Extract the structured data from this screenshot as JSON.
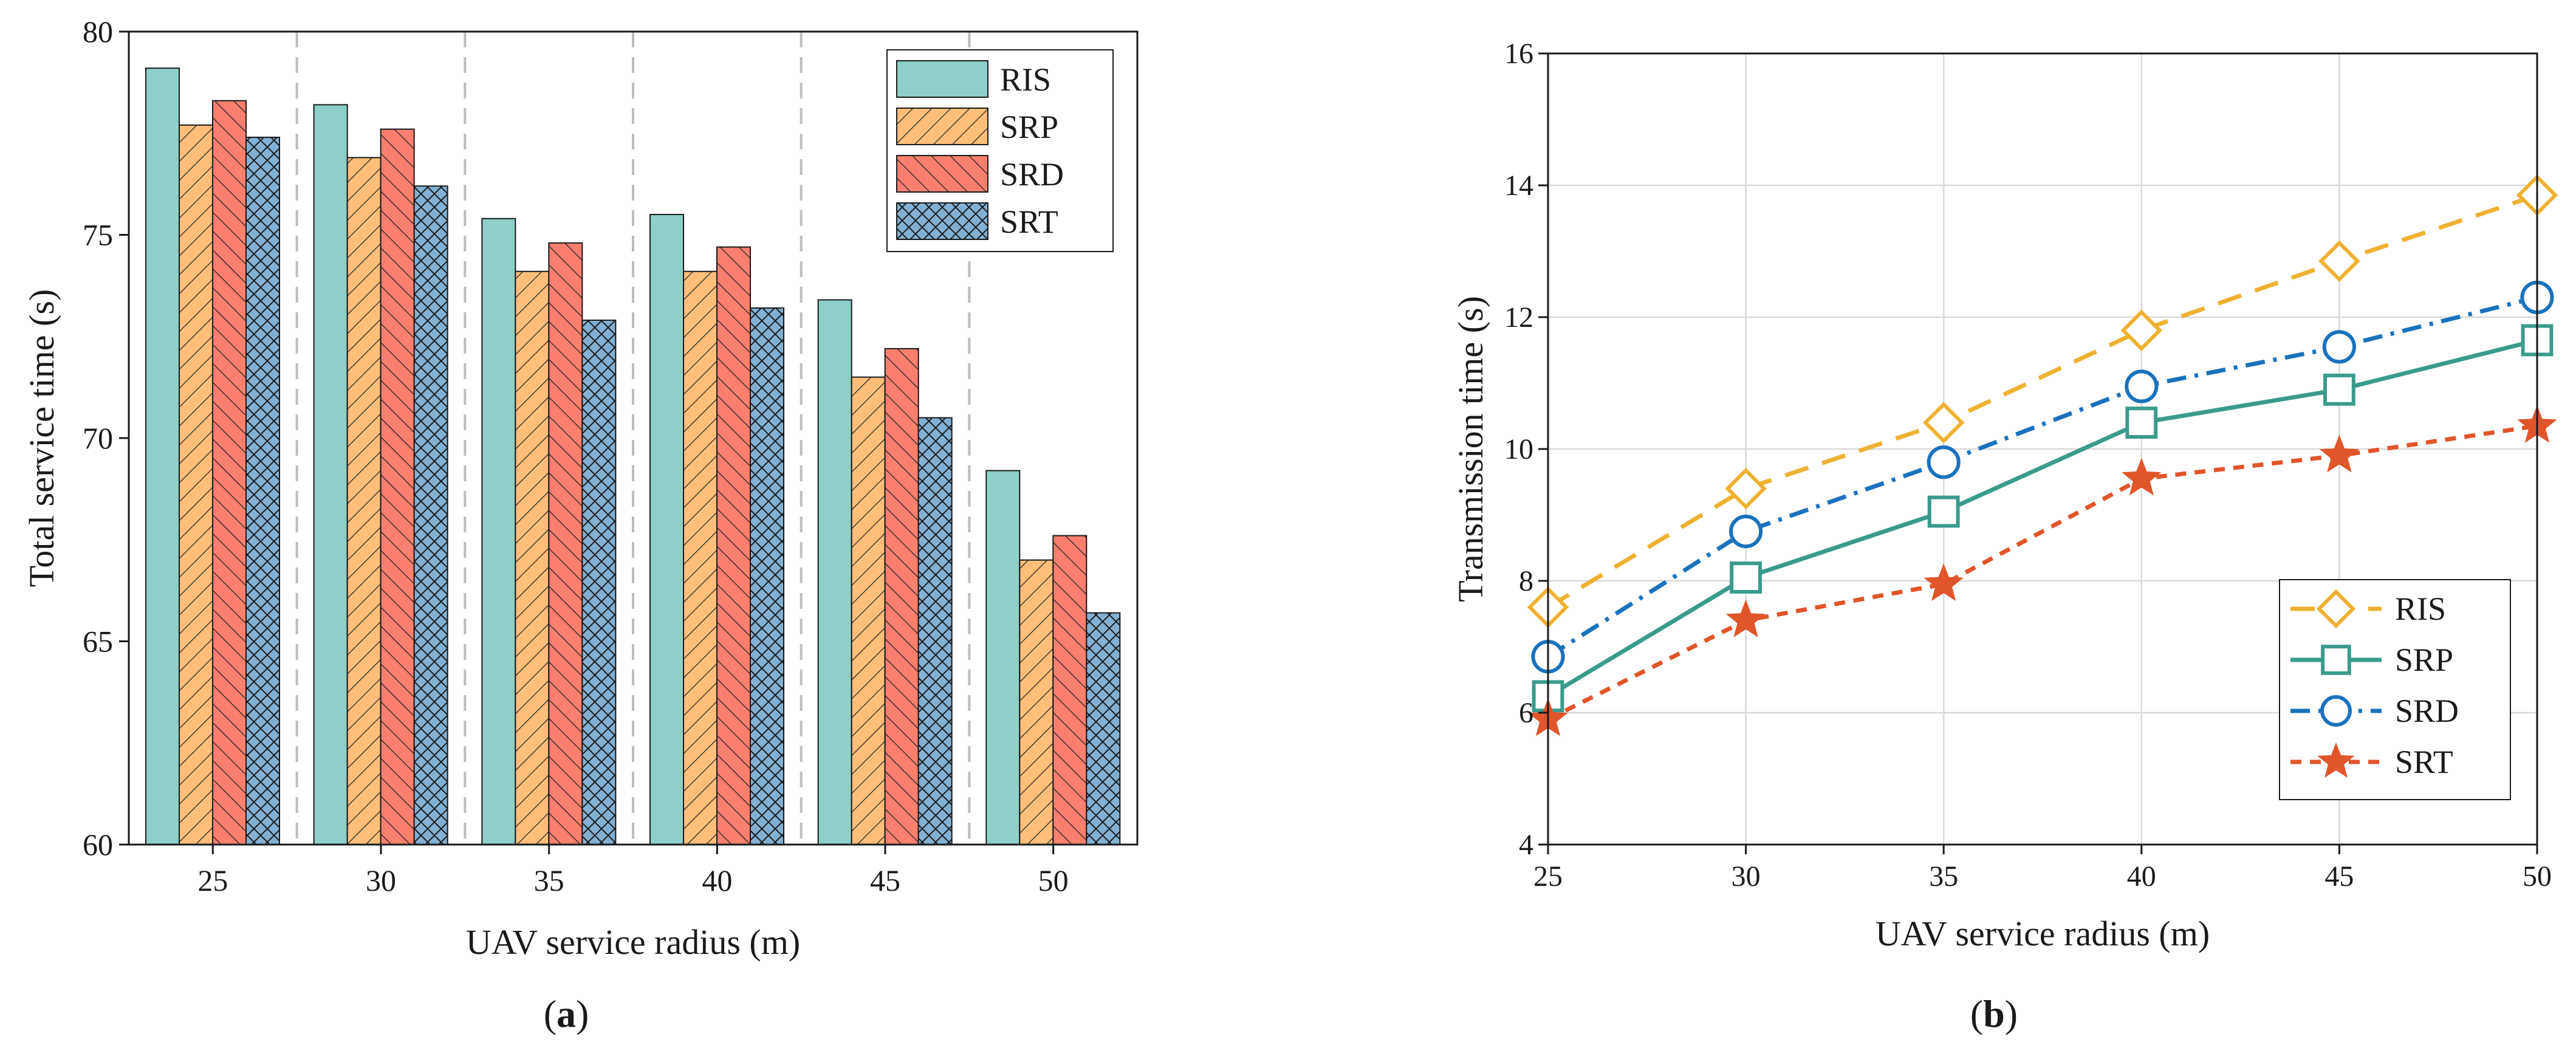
{
  "panels": {
    "a": {
      "paren_open": "(",
      "letter": "a",
      "paren_close": ")"
    },
    "b": {
      "paren_open": "(",
      "letter": "b",
      "paren_close": ")"
    }
  },
  "colors": {
    "RIS": "#8ecfc9",
    "SRP": "#ffbe7a",
    "SRD": "#fa7f6f",
    "SRT": "#82b0d2",
    "line_RIS": "#eeb130",
    "line_SRP": "#3a9b8c",
    "line_SRD": "#1a72bc",
    "line_SRT": "#e0552a"
  },
  "chart_data": [
    {
      "id": "a",
      "type": "bar",
      "title": "",
      "xlabel": "UAV service radius (m)",
      "ylabel": "Total service time (s)",
      "categories": [
        "25",
        "30",
        "35",
        "40",
        "45",
        "50"
      ],
      "ylim": [
        60,
        80
      ],
      "yticks": [
        "60",
        "65",
        "70",
        "75",
        "80"
      ],
      "series": [
        {
          "name": "RIS",
          "values": [
            79.1,
            78.2,
            75.4,
            75.5,
            73.4,
            69.2
          ]
        },
        {
          "name": "SRP",
          "values": [
            77.7,
            76.9,
            74.1,
            74.1,
            71.5,
            67.0
          ]
        },
        {
          "name": "SRD",
          "values": [
            78.3,
            77.6,
            74.8,
            74.7,
            72.2,
            67.6
          ]
        },
        {
          "name": "SRT",
          "values": [
            77.4,
            76.2,
            72.9,
            73.2,
            70.5,
            65.7
          ]
        }
      ],
      "legend": "top-right",
      "grid": false
    },
    {
      "id": "b",
      "type": "line",
      "title": "",
      "xlabel": "UAV service radius (m)",
      "ylabel": "Transmission time (s)",
      "x": [
        25,
        30,
        35,
        40,
        45,
        50
      ],
      "xticks": [
        "25",
        "30",
        "35",
        "40",
        "45",
        "50"
      ],
      "ylim": [
        4,
        16
      ],
      "yticks": [
        "4",
        "6",
        "8",
        "10",
        "12",
        "14",
        "16"
      ],
      "series": [
        {
          "name": "RIS",
          "values": [
            7.6,
            9.4,
            10.4,
            11.8,
            12.85,
            13.85
          ]
        },
        {
          "name": "SRP",
          "values": [
            6.25,
            8.05,
            9.05,
            10.4,
            10.9,
            11.65
          ]
        },
        {
          "name": "SRD",
          "values": [
            6.85,
            8.75,
            9.8,
            10.95,
            11.55,
            12.3
          ]
        },
        {
          "name": "SRT",
          "values": [
            5.9,
            7.4,
            7.95,
            9.55,
            9.9,
            10.35
          ]
        }
      ],
      "legend": "bottom-right",
      "grid": true
    }
  ]
}
